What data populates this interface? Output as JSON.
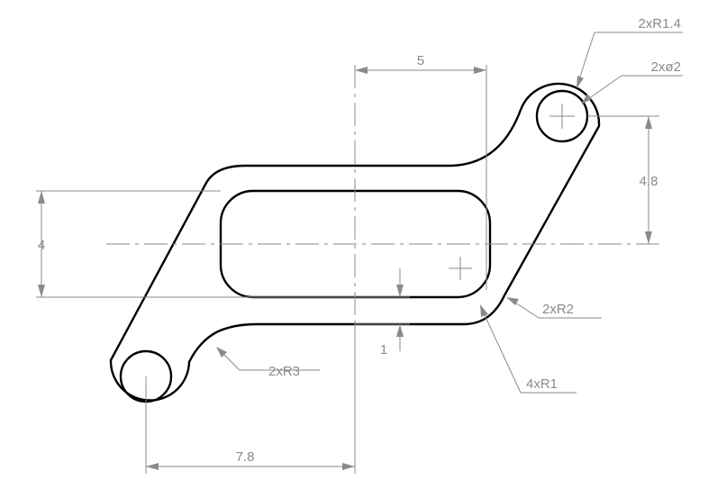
{
  "drawing": {
    "stroke_color": "#000000",
    "dimension_color": "#8a8a8a",
    "dimensions": {
      "top_width": "5",
      "right_height": "4.8",
      "left_height": "4",
      "small_gap": "1",
      "bottom_width": "7.8"
    },
    "callouts": {
      "r14": "2xR1.4",
      "dia2": "2xø2",
      "r2": "2xR2",
      "r1": "4xR1",
      "r3": "2xR3"
    }
  }
}
